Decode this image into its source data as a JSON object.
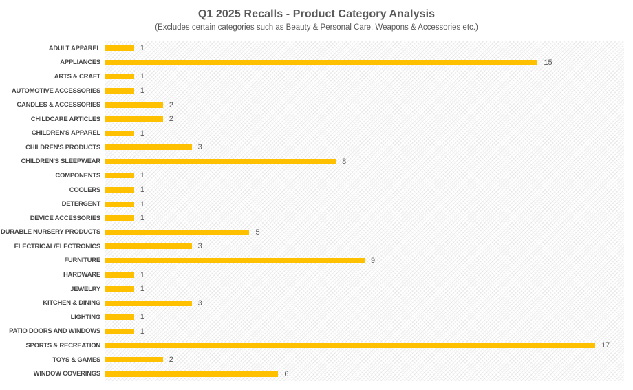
{
  "chart_data": {
    "type": "bar",
    "orientation": "horizontal",
    "title": "Q1 2025 Recalls - Product Category Analysis",
    "subtitle": "(Excludes certain categories such as Beauty & Personal Care, Weapons & Accessories etc.)",
    "categories": [
      "ADULT APPAREL",
      "APPLIANCES",
      "ARTS & CRAFT",
      "AUTOMOTIVE ACCESSORIES",
      "CANDLES & ACCESSORIES",
      "CHILDCARE ARTICLES",
      "CHILDREN'S APPAREL",
      "CHILDREN'S PRODUCTS",
      "CHILDREN'S SLEEPWEAR",
      "COMPONENTS",
      "COOLERS",
      "DETERGENT",
      "DEVICE ACCESSORIES",
      "DURABLE NURSERY PRODUCTS",
      "ELECTRICAL/ELECTRONICS",
      "FURNITURE",
      "HARDWARE",
      "JEWELRY",
      "KITCHEN & DINING",
      "LIGHTING",
      "PATIO DOORS AND WINDOWS",
      "SPORTS & RECREATION",
      "TOYS & GAMES",
      "WINDOW COVERINGS"
    ],
    "values": [
      1,
      15,
      1,
      1,
      2,
      2,
      1,
      3,
      8,
      1,
      1,
      1,
      1,
      5,
      3,
      9,
      1,
      1,
      3,
      1,
      1,
      17,
      2,
      6
    ],
    "xlim": [
      0,
      18
    ],
    "grid": false,
    "data_labels": true,
    "legend": "none",
    "bar_color": "#FFC000",
    "category_label_color": "#474747",
    "value_label_color": "#595959",
    "title_color": "#595959",
    "plot_background": "light-diagonal-crosshatch"
  }
}
